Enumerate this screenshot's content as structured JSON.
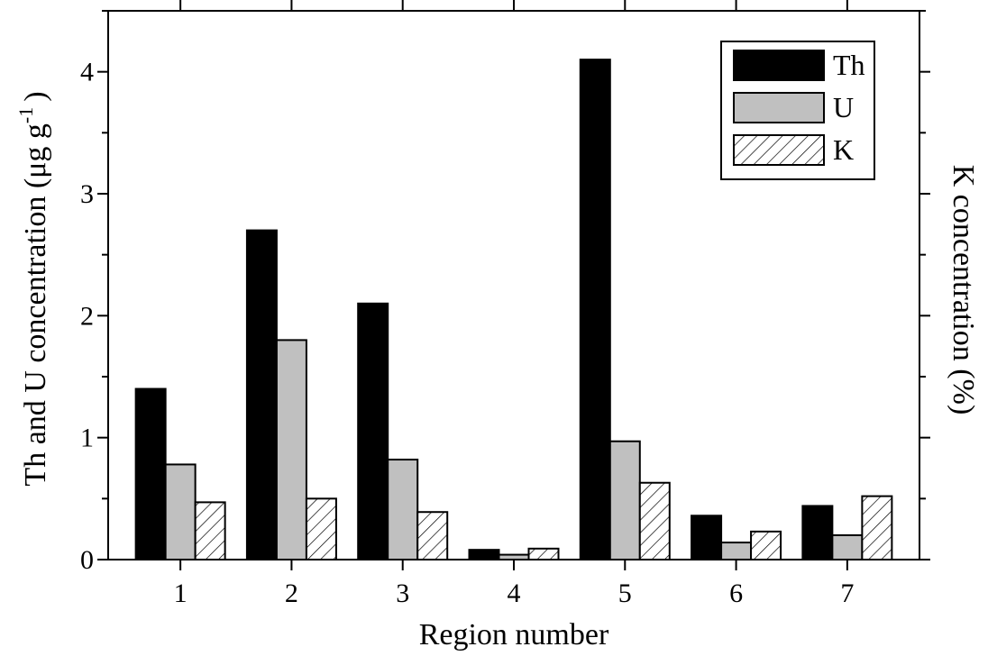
{
  "chart_data": {
    "type": "bar",
    "categories": [
      "1",
      "2",
      "3",
      "4",
      "5",
      "6",
      "7"
    ],
    "series": [
      {
        "name": "Th",
        "axis": "left",
        "style": "solid-black",
        "values": [
          1.4,
          2.7,
          2.1,
          0.08,
          4.1,
          0.36,
          0.44
        ]
      },
      {
        "name": "U",
        "axis": "left",
        "style": "solid-gray",
        "values": [
          0.78,
          1.8,
          0.82,
          0.04,
          0.97,
          0.14,
          0.2
        ]
      },
      {
        "name": "K",
        "axis": "right",
        "style": "hatched",
        "values": [
          0.47,
          0.5,
          0.39,
          0.09,
          0.63,
          0.23,
          0.52
        ]
      }
    ],
    "xlabel": "Region number",
    "ylabel": "Th and U concentration (μg g⁻¹)",
    "ylabel_main": "Th and U concentration (μg g",
    "ylabel_sup": "-1",
    "ylabel_close": ")",
    "y2label": "K concentration (%)",
    "ylim": [
      0,
      4.5
    ],
    "y2lim": [
      0,
      4.5
    ],
    "yticks": [
      "0",
      "1",
      "2",
      "3",
      "4"
    ],
    "y2ticks_labeled": false,
    "grid": false,
    "legend_position": "top-right",
    "colors": {
      "Th": "#000000",
      "U": "#c0c0c0",
      "K": "#ffffff"
    }
  }
}
